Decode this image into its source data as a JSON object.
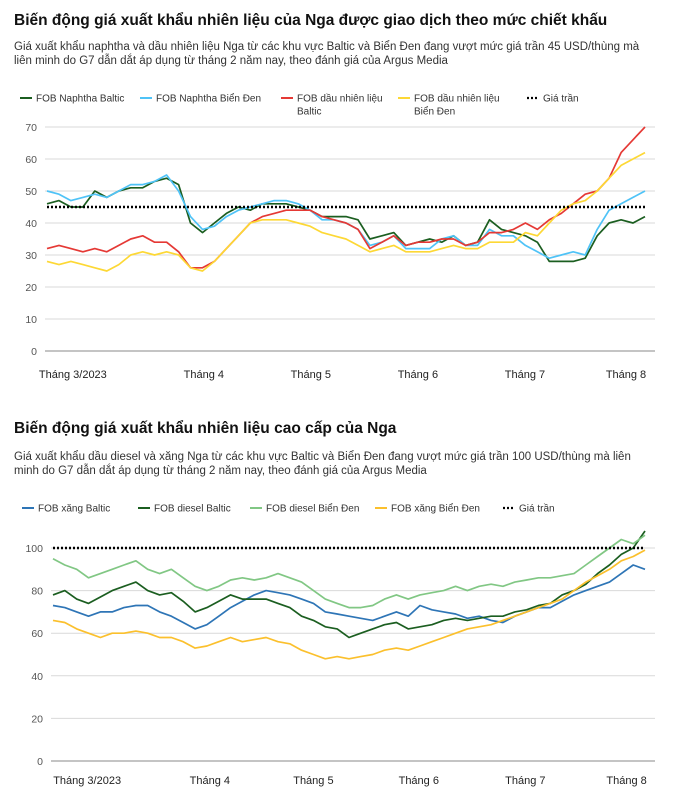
{
  "chart_data": [
    {
      "type": "line",
      "title": "Biến động giá xuất khẩu nhiên liệu của Nga được giao dịch theo mức chiết khấu",
      "subtitle": "Giá xuất khẩu naphtha và dầu nhiên liệu Nga  từ các khu vực Baltic và Biển Đen đang vượt mức giá trần 45 USD/thùng mà liên minh do G7 dẫn dắt áp dụng từ tháng 2 năm nay, theo đánh giá của Argus Media",
      "ylim": [
        0,
        70
      ],
      "yticks": [
        0,
        10,
        20,
        30,
        40,
        50,
        60,
        70
      ],
      "x_range": [
        0,
        100
      ],
      "x_categories": [
        "Tháng 3/2023",
        "Tháng 4",
        "Tháng 5",
        "Tháng 6",
        "Tháng 7",
        "Tháng 8"
      ],
      "x_category_positions": [
        10,
        29.6,
        47.5,
        65.4,
        83.3,
        100.2
      ],
      "cap": {
        "name": "Giá trần",
        "value": 45,
        "color": "#000000"
      },
      "series": [
        {
          "name": "FOB Naphtha Baltic",
          "color": "#1b5e20",
          "legend_lines": [
            "FOB Naphtha Baltic"
          ],
          "x": [
            0,
            2,
            4,
            6,
            8,
            10,
            12,
            14,
            16,
            18,
            20,
            22,
            24,
            26,
            28,
            30,
            32,
            34,
            36,
            38,
            40,
            42,
            44,
            46,
            48,
            50,
            52,
            54,
            56,
            58,
            60,
            62,
            64,
            66,
            68,
            70,
            72,
            74,
            76,
            78,
            80,
            82,
            84,
            86,
            88,
            90,
            92,
            94,
            96,
            98,
            100
          ],
          "values": [
            46,
            47,
            45,
            45,
            50,
            48,
            50,
            51,
            51,
            53,
            54,
            52,
            40,
            37,
            40,
            43,
            45,
            44,
            46,
            46,
            46,
            45,
            44,
            42,
            42,
            42,
            41,
            35,
            36,
            37,
            33,
            34,
            35,
            34,
            36,
            33,
            34,
            41,
            38,
            37,
            36,
            34,
            28,
            28,
            28,
            29,
            36,
            40,
            41,
            40,
            42
          ]
        },
        {
          "name": "FOB Naphtha Biển Đen",
          "color": "#4fc3f7",
          "legend_lines": [
            "FOB Naphtha Biển Đen"
          ],
          "x": [
            0,
            2,
            4,
            6,
            8,
            10,
            12,
            14,
            16,
            18,
            20,
            22,
            24,
            26,
            28,
            30,
            32,
            34,
            36,
            38,
            40,
            42,
            44,
            46,
            48,
            50,
            52,
            54,
            56,
            58,
            60,
            62,
            64,
            66,
            68,
            70,
            72,
            74,
            76,
            78,
            80,
            82,
            84,
            86,
            88,
            90,
            92,
            94,
            96,
            98,
            100
          ],
          "values": [
            50,
            49,
            47,
            48,
            49,
            48,
            50,
            52,
            52,
            53,
            55,
            50,
            42,
            38,
            39,
            42,
            44,
            45,
            46,
            47,
            47,
            46,
            44,
            41,
            41,
            40,
            38,
            33,
            34,
            36,
            32,
            32,
            32,
            35,
            36,
            33,
            33,
            38,
            36,
            36,
            33,
            31,
            29,
            30,
            31,
            30,
            38,
            44,
            46,
            48,
            50
          ]
        },
        {
          "name": "FOB dầu nhiên liệu Baltic",
          "color": "#e53935",
          "legend_lines": [
            "FOB dầu nhiên liệu",
            "Baltic"
          ],
          "x": [
            0,
            2,
            4,
            6,
            8,
            10,
            12,
            14,
            16,
            18,
            20,
            22,
            24,
            26,
            28,
            30,
            32,
            34,
            36,
            38,
            40,
            42,
            44,
            46,
            48,
            50,
            52,
            54,
            56,
            58,
            60,
            62,
            64,
            66,
            68,
            70,
            72,
            74,
            76,
            78,
            80,
            82,
            84,
            86,
            88,
            90,
            92,
            94,
            96,
            98,
            100
          ],
          "values": [
            32,
            33,
            32,
            31,
            32,
            31,
            33,
            35,
            36,
            34,
            34,
            31,
            26,
            26,
            28,
            32,
            36,
            40,
            42,
            43,
            44,
            44,
            44,
            42,
            41,
            40,
            38,
            32,
            34,
            36,
            33,
            34,
            34,
            35,
            35,
            33,
            34,
            37,
            37,
            38,
            40,
            38,
            41,
            43,
            46,
            49,
            50,
            54,
            62,
            66,
            70
          ]
        },
        {
          "name": "FOB dầu nhiên liệu Biển Đen",
          "color": "#fdd835",
          "legend_lines": [
            "FOB dầu nhiên liệu",
            "Biển Đen"
          ],
          "x": [
            0,
            2,
            4,
            6,
            8,
            10,
            12,
            14,
            16,
            18,
            20,
            22,
            24,
            26,
            28,
            30,
            32,
            34,
            36,
            38,
            40,
            42,
            44,
            46,
            48,
            50,
            52,
            54,
            56,
            58,
            60,
            62,
            64,
            66,
            68,
            70,
            72,
            74,
            76,
            78,
            80,
            82,
            84,
            86,
            88,
            90,
            92,
            94,
            96,
            98,
            100
          ],
          "values": [
            28,
            27,
            28,
            27,
            26,
            25,
            27,
            30,
            31,
            30,
            31,
            30,
            26,
            25,
            28,
            32,
            36,
            40,
            41,
            41,
            41,
            40,
            39,
            37,
            36,
            35,
            33,
            31,
            32,
            33,
            31,
            31,
            31,
            32,
            33,
            32,
            32,
            34,
            34,
            34,
            37,
            36,
            40,
            44,
            46,
            47,
            50,
            54,
            58,
            60,
            62
          ]
        }
      ]
    },
    {
      "type": "line",
      "title": "Biến động giá xuất khẩu nhiên liệu cao cấp của Nga",
      "subtitle": "Giá xuất khẩu dầu diesel và xăng Nga từ các khu vực Baltic và Biển Đen đang vượt mức giá trần 100 USD/thùng mà liên minh do G7 dẫn dắt áp dụng từ tháng 2 năm nay, theo đánh giá của Argus Media",
      "ylim": [
        0,
        100
      ],
      "yticks": [
        0,
        20,
        40,
        60,
        80,
        100
      ],
      "x_range": [
        0,
        100
      ],
      "x_categories": [
        "Tháng 3/2023",
        "Tháng 4",
        "Tháng 5",
        "Tháng 6",
        "Tháng 7",
        "Tháng 8"
      ],
      "x_category_positions": [
        11.5,
        29.9,
        47.4,
        65.2,
        83.2,
        100.3
      ],
      "cap": {
        "name": "Giá trần",
        "value": 100,
        "color": "#000000"
      },
      "series": [
        {
          "name": "FOB xăng Baltic",
          "color": "#2e75b6",
          "legend_lines": [
            "FOB xăng Baltic"
          ],
          "x": [
            0,
            2,
            4,
            6,
            8,
            10,
            12,
            14,
            16,
            18,
            20,
            22,
            24,
            26,
            28,
            30,
            32,
            34,
            36,
            38,
            40,
            42,
            44,
            46,
            48,
            50,
            52,
            54,
            56,
            58,
            60,
            62,
            64,
            66,
            68,
            70,
            72,
            74,
            76,
            78,
            80,
            82,
            84,
            86,
            88,
            90,
            92,
            94,
            96,
            98,
            100
          ],
          "values": [
            73,
            72,
            70,
            68,
            70,
            70,
            72,
            73,
            73,
            70,
            68,
            65,
            62,
            64,
            68,
            72,
            75,
            78,
            80,
            79,
            78,
            76,
            74,
            70,
            69,
            68,
            67,
            66,
            68,
            70,
            68,
            73,
            71,
            70,
            69,
            67,
            68,
            66,
            65,
            68,
            70,
            72,
            72,
            75,
            78,
            80,
            82,
            84,
            88,
            92,
            90
          ]
        },
        {
          "name": "FOB diesel Baltic",
          "color": "#1b5e20",
          "legend_lines": [
            "FOB diesel Baltic"
          ],
          "x": [
            0,
            2,
            4,
            6,
            8,
            10,
            12,
            14,
            16,
            18,
            20,
            22,
            24,
            26,
            28,
            30,
            32,
            34,
            36,
            38,
            40,
            42,
            44,
            46,
            48,
            50,
            52,
            54,
            56,
            58,
            60,
            62,
            64,
            66,
            68,
            70,
            72,
            74,
            76,
            78,
            80,
            82,
            84,
            86,
            88,
            90,
            92,
            94,
            96,
            98,
            100
          ],
          "values": [
            78,
            80,
            76,
            74,
            77,
            80,
            82,
            84,
            80,
            78,
            79,
            75,
            70,
            72,
            75,
            78,
            76,
            76,
            76,
            74,
            72,
            68,
            66,
            63,
            62,
            58,
            60,
            62,
            64,
            65,
            62,
            63,
            64,
            66,
            67,
            66,
            67,
            68,
            68,
            70,
            71,
            73,
            74,
            78,
            80,
            83,
            88,
            92,
            97,
            100,
            108
          ]
        },
        {
          "name": "FOB diesel Biển Đen",
          "color": "#81c784",
          "legend_lines": [
            "FOB diesel Biển Đen"
          ],
          "x": [
            0,
            2,
            4,
            6,
            8,
            10,
            12,
            14,
            16,
            18,
            20,
            22,
            24,
            26,
            28,
            30,
            32,
            34,
            36,
            38,
            40,
            42,
            44,
            46,
            48,
            50,
            52,
            54,
            56,
            58,
            60,
            62,
            64,
            66,
            68,
            70,
            72,
            74,
            76,
            78,
            80,
            82,
            84,
            86,
            88,
            90,
            92,
            94,
            96,
            98,
            100
          ],
          "values": [
            95,
            92,
            90,
            86,
            88,
            90,
            92,
            94,
            90,
            88,
            90,
            86,
            82,
            80,
            82,
            85,
            86,
            85,
            86,
            88,
            86,
            84,
            80,
            76,
            74,
            72,
            72,
            73,
            76,
            78,
            76,
            78,
            79,
            80,
            82,
            80,
            82,
            83,
            82,
            84,
            85,
            86,
            86,
            87,
            88,
            92,
            96,
            100,
            104,
            102,
            106
          ]
        },
        {
          "name": "FOB xăng Biển Đen",
          "color": "#fbc02d",
          "legend_lines": [
            "FOB xăng Biển Đen"
          ],
          "x": [
            0,
            2,
            4,
            6,
            8,
            10,
            12,
            14,
            16,
            18,
            20,
            22,
            24,
            26,
            28,
            30,
            32,
            34,
            36,
            38,
            40,
            42,
            44,
            46,
            48,
            50,
            52,
            54,
            56,
            58,
            60,
            62,
            64,
            66,
            68,
            70,
            72,
            74,
            76,
            78,
            80,
            82,
            84,
            86,
            88,
            90,
            92,
            94,
            96,
            98,
            100
          ],
          "values": [
            66,
            65,
            62,
            60,
            58,
            60,
            60,
            61,
            60,
            58,
            58,
            56,
            53,
            54,
            56,
            58,
            56,
            57,
            58,
            56,
            55,
            52,
            50,
            48,
            49,
            48,
            49,
            50,
            52,
            53,
            52,
            54,
            56,
            58,
            60,
            62,
            63,
            64,
            66,
            68,
            70,
            72,
            74,
            76,
            80,
            84,
            87,
            90,
            94,
            96,
            99
          ]
        }
      ]
    }
  ]
}
